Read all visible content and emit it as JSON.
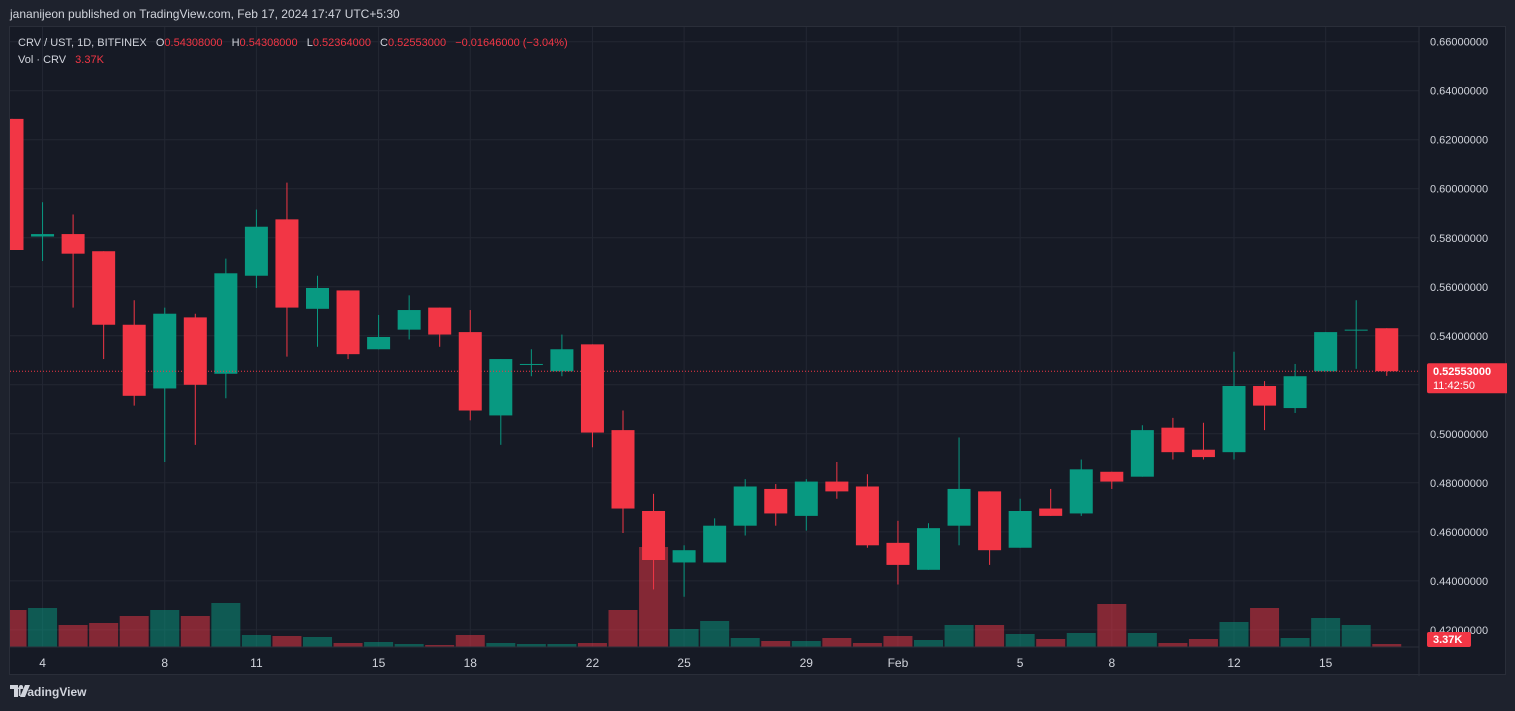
{
  "header": {
    "published": "jananijeon published on TradingView.com, Feb 17, 2024 17:47 UTC+5:30"
  },
  "legend": {
    "symbol": "CRV / UST, 1D, BITFINEX",
    "o_label": "O",
    "o_value": "0.54308000",
    "h_label": "H",
    "h_value": "0.54308000",
    "l_label": "L",
    "l_value": "0.52364000",
    "c_label": "C",
    "c_value": "0.52553000",
    "change": "−0.01646000 (−3.04%)",
    "vol_label": "Vol · CRV",
    "vol_value": "3.37K"
  },
  "price_badge": {
    "value": "0.52553000",
    "countdown": "11:42:50"
  },
  "volume_badge": {
    "value": "3.37K"
  },
  "footer": {
    "brand": "TradingView"
  },
  "colors": {
    "up": "#089981",
    "down": "#f23645",
    "background": "#161a25",
    "grid": "#232733",
    "text": "#d1d4dc"
  },
  "chart_data": {
    "type": "candlestick",
    "symbol": "CRV / UST",
    "interval": "1D",
    "exchange": "BITFINEX",
    "y_axis": {
      "ticks": [
        "0.66000000",
        "0.64000000",
        "0.62000000",
        "0.60000000",
        "0.58000000",
        "0.56000000",
        "0.54000000",
        "0.52000000",
        "0.50000000",
        "0.48000000",
        "0.46000000",
        "0.44000000",
        "0.42000000"
      ],
      "ylim": [
        0.413,
        0.666
      ]
    },
    "x_axis": {
      "ticks": [
        {
          "label": "4",
          "index": 1
        },
        {
          "label": "8",
          "index": 5
        },
        {
          "label": "11",
          "index": 8
        },
        {
          "label": "15",
          "index": 12
        },
        {
          "label": "18",
          "index": 15
        },
        {
          "label": "22",
          "index": 19
        },
        {
          "label": "25",
          "index": 22
        },
        {
          "label": "29",
          "index": 26
        },
        {
          "label": "Feb",
          "index": 29
        },
        {
          "label": "5",
          "index": 33
        },
        {
          "label": "8",
          "index": 36
        },
        {
          "label": "12",
          "index": 40
        },
        {
          "label": "15",
          "index": 43
        }
      ]
    },
    "candles": [
      {
        "o": 0.6285,
        "h": 0.6285,
        "l": 0.575,
        "c": 0.575,
        "v": 0.37
      },
      {
        "o": 0.5805,
        "h": 0.5945,
        "l": 0.5705,
        "c": 0.5815,
        "v": 0.39
      },
      {
        "o": 0.5815,
        "h": 0.5895,
        "l": 0.5515,
        "c": 0.5735,
        "v": 0.22
      },
      {
        "o": 0.5745,
        "h": 0.5745,
        "l": 0.5305,
        "c": 0.5445,
        "v": 0.24
      },
      {
        "o": 0.5445,
        "h": 0.5545,
        "l": 0.5115,
        "c": 0.5155,
        "v": 0.31
      },
      {
        "o": 0.5185,
        "h": 0.5515,
        "l": 0.4885,
        "c": 0.549,
        "v": 0.37
      },
      {
        "o": 0.5475,
        "h": 0.549,
        "l": 0.4955,
        "c": 0.52,
        "v": 0.31
      },
      {
        "o": 0.5245,
        "h": 0.5715,
        "l": 0.5145,
        "c": 0.5655,
        "v": 0.44
      },
      {
        "o": 0.5645,
        "h": 0.5915,
        "l": 0.5595,
        "c": 0.5845,
        "v": 0.12
      },
      {
        "o": 0.5875,
        "h": 0.6025,
        "l": 0.5315,
        "c": 0.5515,
        "v": 0.11
      },
      {
        "o": 0.551,
        "h": 0.5645,
        "l": 0.5355,
        "c": 0.5595,
        "v": 0.1
      },
      {
        "o": 0.5585,
        "h": 0.5585,
        "l": 0.5305,
        "c": 0.5325,
        "v": 0.04
      },
      {
        "o": 0.5345,
        "h": 0.5485,
        "l": 0.5345,
        "c": 0.5395,
        "v": 0.05
      },
      {
        "o": 0.5425,
        "h": 0.5565,
        "l": 0.5385,
        "c": 0.5505,
        "v": 0.03
      },
      {
        "o": 0.5515,
        "h": 0.5515,
        "l": 0.5355,
        "c": 0.5405,
        "v": 0.02
      },
      {
        "o": 0.5415,
        "h": 0.5505,
        "l": 0.5055,
        "c": 0.5095,
        "v": 0.12
      },
      {
        "o": 0.5075,
        "h": 0.5305,
        "l": 0.4955,
        "c": 0.5305,
        "v": 0.04
      },
      {
        "o": 0.5285,
        "h": 0.5345,
        "l": 0.5235,
        "c": 0.5285,
        "v": 0.03
      },
      {
        "o": 0.5255,
        "h": 0.5405,
        "l": 0.5235,
        "c": 0.5345,
        "v": 0.03
      },
      {
        "o": 0.5365,
        "h": 0.5365,
        "l": 0.4945,
        "c": 0.5005,
        "v": 0.04
      },
      {
        "o": 0.5015,
        "h": 0.5095,
        "l": 0.4595,
        "c": 0.4695,
        "v": 0.37
      },
      {
        "o": 0.4685,
        "h": 0.4755,
        "l": 0.4365,
        "c": 0.4485,
        "v": 1.0
      },
      {
        "o": 0.4475,
        "h": 0.4545,
        "l": 0.4335,
        "c": 0.4525,
        "v": 0.18
      },
      {
        "o": 0.4475,
        "h": 0.4655,
        "l": 0.4475,
        "c": 0.4625,
        "v": 0.26
      },
      {
        "o": 0.4625,
        "h": 0.4815,
        "l": 0.4585,
        "c": 0.4785,
        "v": 0.09
      },
      {
        "o": 0.4775,
        "h": 0.4795,
        "l": 0.4625,
        "c": 0.4675,
        "v": 0.06
      },
      {
        "o": 0.4665,
        "h": 0.4815,
        "l": 0.4605,
        "c": 0.4805,
        "v": 0.06
      },
      {
        "o": 0.4805,
        "h": 0.4885,
        "l": 0.4735,
        "c": 0.4765,
        "v": 0.09
      },
      {
        "o": 0.4785,
        "h": 0.4835,
        "l": 0.4535,
        "c": 0.4545,
        "v": 0.04
      },
      {
        "o": 0.4555,
        "h": 0.4645,
        "l": 0.4385,
        "c": 0.4465,
        "v": 0.11
      },
      {
        "o": 0.4445,
        "h": 0.4635,
        "l": 0.4445,
        "c": 0.4615,
        "v": 0.07
      },
      {
        "o": 0.4625,
        "h": 0.4985,
        "l": 0.4545,
        "c": 0.4775,
        "v": 0.22
      },
      {
        "o": 0.4765,
        "h": 0.4765,
        "l": 0.4465,
        "c": 0.4525,
        "v": 0.22
      },
      {
        "o": 0.4535,
        "h": 0.4735,
        "l": 0.4535,
        "c": 0.4685,
        "v": 0.13
      },
      {
        "o": 0.4695,
        "h": 0.4775,
        "l": 0.4665,
        "c": 0.4665,
        "v": 0.08
      },
      {
        "o": 0.4675,
        "h": 0.4895,
        "l": 0.4665,
        "c": 0.4855,
        "v": 0.14
      },
      {
        "o": 0.4845,
        "h": 0.4845,
        "l": 0.4775,
        "c": 0.4805,
        "v": 0.43
      },
      {
        "o": 0.4825,
        "h": 0.5035,
        "l": 0.4825,
        "c": 0.5015,
        "v": 0.14
      },
      {
        "o": 0.5025,
        "h": 0.5065,
        "l": 0.4895,
        "c": 0.4925,
        "v": 0.04
      },
      {
        "o": 0.4935,
        "h": 0.5045,
        "l": 0.4895,
        "c": 0.4905,
        "v": 0.08
      },
      {
        "o": 0.4925,
        "h": 0.5335,
        "l": 0.4895,
        "c": 0.5195,
        "v": 0.25
      },
      {
        "o": 0.5195,
        "h": 0.5215,
        "l": 0.5015,
        "c": 0.5115,
        "v": 0.39
      },
      {
        "o": 0.5105,
        "h": 0.5285,
        "l": 0.5085,
        "c": 0.5235,
        "v": 0.09
      },
      {
        "o": 0.5255,
        "h": 0.5415,
        "l": 0.5255,
        "c": 0.5415,
        "v": 0.29
      },
      {
        "o": 0.5425,
        "h": 0.5545,
        "l": 0.5265,
        "c": 0.5425,
        "v": 0.22
      },
      {
        "o": 0.54308,
        "h": 0.54308,
        "l": 0.52364,
        "c": 0.52553,
        "v": 0.03
      }
    ],
    "last_price": 0.52553,
    "last_volume": "3.37K"
  }
}
